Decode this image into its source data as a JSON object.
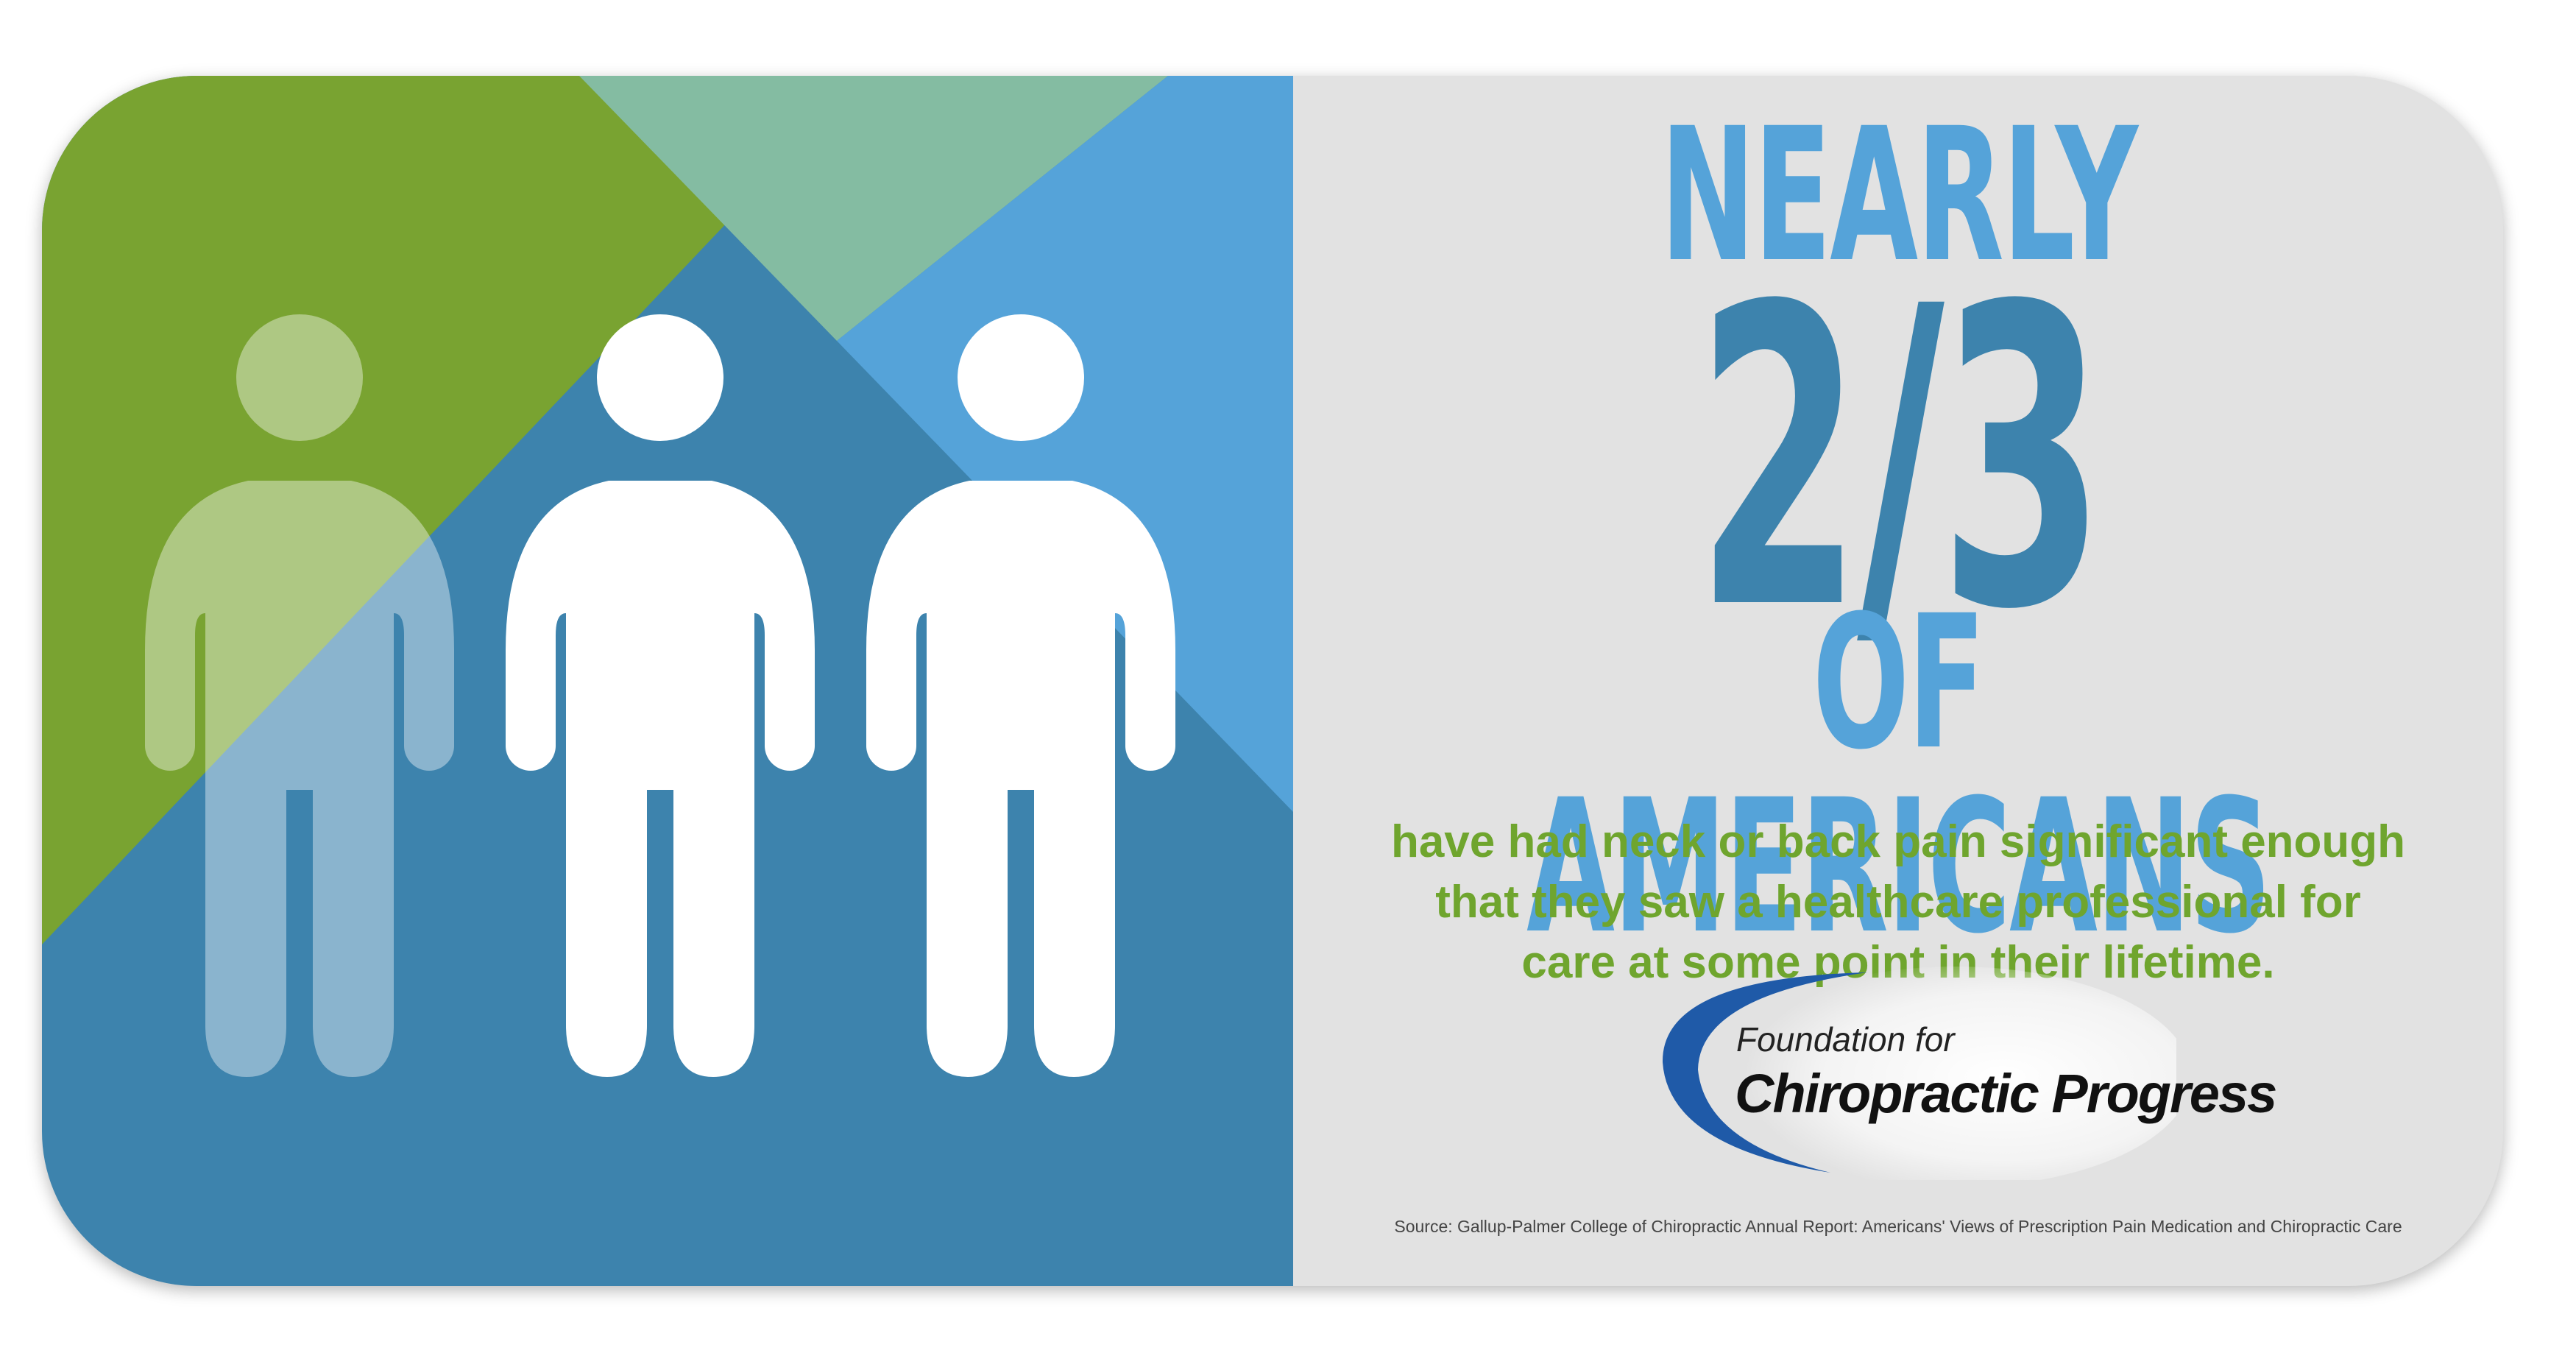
{
  "colors": {
    "green": "#79a331",
    "blue_dark": "#3d83ad",
    "blue_light": "#55a3d9",
    "teal": "#84bca2",
    "panel_bg": "#e2e2e2",
    "text_green": "#6fa52e"
  },
  "illustration": {
    "figures": [
      {
        "name": "faded-person-icon",
        "highlighted": false
      },
      {
        "name": "person-icon",
        "highlighted": true
      },
      {
        "name": "person-icon",
        "highlighted": true
      }
    ]
  },
  "headline": {
    "line1": "NEARLY",
    "stat": "2/3",
    "line3": "OF AMERICANS"
  },
  "body": {
    "lines": [
      "have had neck or back pain significant enough",
      "that they saw a healthcare professional for",
      "care at some point in their lifetime."
    ]
  },
  "logo": {
    "line1": "Foundation for",
    "line2": "Chiropractic Progress"
  },
  "source": "Source: Gallup-Palmer College of Chiropractic Annual Report: Americans' Views of Prescription Pain Medication and Chiropractic Care"
}
